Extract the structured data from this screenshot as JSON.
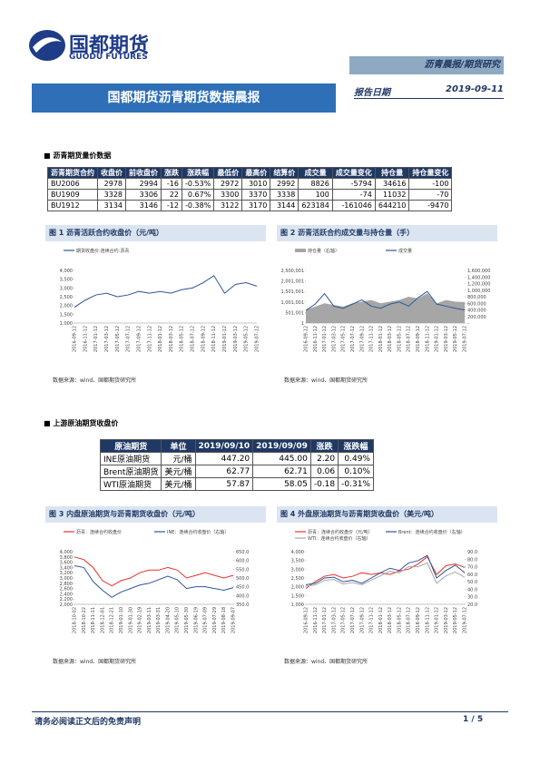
{
  "header": {
    "logo_cn": "国都期货",
    "logo_en": "GUODU FUTURES",
    "tag": "沥青晨报/期货研究",
    "title": "国都期货沥青期货数据晨报",
    "date_label": "报告日期",
    "date": "2019-09-11"
  },
  "section1": "沥青期货量价数据",
  "table1": {
    "headers": [
      "沥青期货合约",
      "收盘价",
      "前收盘价",
      "涨跌",
      "涨跌幅",
      "最低价",
      "最高价",
      "结算价",
      "成交量",
      "成交量变化",
      "持仓量",
      "持仓量变化"
    ],
    "rows": [
      [
        "BU2006",
        "2978",
        "2994",
        "-16",
        "-0.53%",
        "2972",
        "3010",
        "2992",
        "8826",
        "-5794",
        "34616",
        "-100"
      ],
      [
        "BU1909",
        "3328",
        "3306",
        "22",
        "0.67%",
        "3300",
        "3370",
        "3338",
        "100",
        "-74",
        "11032",
        "-70"
      ],
      [
        "BU1912",
        "3134",
        "3146",
        "-12",
        "-0.38%",
        "3122",
        "3170",
        "3144",
        "623184",
        "-161046",
        "644210",
        "-9470"
      ]
    ]
  },
  "section2": "上游原油期货收盘价",
  "table2": {
    "headers": [
      "原油期货",
      "单位",
      "2019/09/10",
      "2019/09/09",
      "涨跌",
      "涨跌幅"
    ],
    "rows": [
      [
        "INE原油期货",
        "元/桶",
        "447.20",
        "445.00",
        "2.20",
        "0.49%"
      ],
      [
        "Brent原油期货",
        "美元/桶",
        "62.77",
        "62.71",
        "0.06",
        "0.10%"
      ],
      [
        "WTI原油期货",
        "美元/桶",
        "57.87",
        "58.05",
        "-0.18",
        "-0.31%"
      ]
    ]
  },
  "chart_data": [
    {
      "type": "line",
      "title": "图 1 沥青活跃合约收盘价（元/吨）",
      "source": "数据来源：wind、国都期货研究所",
      "categories": [
        "2016-09-12",
        "2016-11-12",
        "2017-01-12",
        "2017-03-12",
        "2017-05-12",
        "2017-07-12",
        "2017-09-12",
        "2017-11-12",
        "2018-01-12",
        "2018-03-12",
        "2018-05-12",
        "2018-07-12",
        "2018-09-12",
        "2018-11-12",
        "2019-01-12",
        "2019-03-12",
        "2019-05-12",
        "2019-07-12"
      ],
      "series": [
        {
          "name": "期货收盘价:连续合约:沥青",
          "color": "#2f5597",
          "values": [
            1900,
            2300,
            2600,
            2700,
            2500,
            2600,
            2800,
            2700,
            2800,
            2700,
            2900,
            3000,
            3300,
            3700,
            2700,
            3200,
            3300,
            3100
          ]
        }
      ],
      "ylim": [
        1000,
        4000
      ],
      "yticks": [
        {
          "value": 1000,
          "label": "1,000"
        },
        {
          "value": 1500,
          "label": "1,500"
        },
        {
          "value": 2000,
          "label": "2,000"
        },
        {
          "value": 2500,
          "label": "2,500"
        },
        {
          "value": 3000,
          "label": "3,000"
        },
        {
          "value": 3500,
          "label": "3,500"
        },
        {
          "value": 4000,
          "label": "4,000"
        }
      ]
    },
    {
      "type": "line",
      "title": "图 2 沥青活跃合约成交量与持仓量（手）",
      "source": "数据来源：wind、国都期货研究所",
      "categories": [
        "2016-09-12",
        "2016-11-12",
        "2017-01-12",
        "2017-03-12",
        "2017-05-12",
        "2017-07-12",
        "2017-09-12",
        "2017-11-12",
        "2018-01-12",
        "2018-03-12",
        "2018-05-12",
        "2018-07-12",
        "2018-09-12",
        "2018-11-12",
        "2019-01-12",
        "2019-03-12",
        "2019-05-12",
        "2019-07-12"
      ],
      "series": [
        {
          "name": "持仓量（右轴）",
          "color": "#a6a6a6",
          "kind": "area",
          "axis": "y2",
          "values": [
            400000,
            500000,
            600000,
            550000,
            500000,
            600000,
            650000,
            700000,
            600000,
            650000,
            700000,
            800000,
            750000,
            900000,
            600000,
            700000,
            650000,
            640000
          ]
        },
        {
          "name": "成交量",
          "color": "#2f5597",
          "values": [
            600000,
            900000,
            1400000,
            800000,
            700000,
            900000,
            1100000,
            800000,
            700000,
            900000,
            1000000,
            800000,
            1200000,
            1500000,
            900000,
            800000,
            700000,
            620000
          ]
        }
      ],
      "ylim": [
        1,
        2500001
      ],
      "yticks": [
        {
          "value": 1,
          "label": "1"
        },
        {
          "value": 501001,
          "label": "501,001"
        },
        {
          "value": 1001001,
          "label": "1,001,001"
        },
        {
          "value": 1501001,
          "label": "1,501,001"
        },
        {
          "value": 2001001,
          "label": "2,001,001"
        },
        {
          "value": 2500001,
          "label": "2,500,001"
        }
      ],
      "y2lim": [
        0,
        1600000
      ],
      "y2ticks": [
        {
          "value": 0,
          "label": "-"
        },
        {
          "value": 200000,
          "label": "200,000"
        },
        {
          "value": 400000,
          "label": "400,000"
        },
        {
          "value": 600000,
          "label": "600,000"
        },
        {
          "value": 800000,
          "label": "800,000"
        },
        {
          "value": 1000000,
          "label": "1,000,000"
        },
        {
          "value": 1200000,
          "label": "1,200,000"
        },
        {
          "value": 1400000,
          "label": "1,400,000"
        },
        {
          "value": 1600000,
          "label": "1,600,000"
        }
      ]
    },
    {
      "type": "line",
      "title": "图 3 内盘原油期货与沥青期货收盘价（元/吨）",
      "source": "数据来源：wind、国都期货研究所",
      "categories": [
        "2018-10-02",
        "2018-10-22",
        "2018-11-11",
        "2018-12-01",
        "2018-12-21",
        "2019-01-10",
        "2019-01-30",
        "2019-02-19",
        "2019-03-11",
        "2019-03-31",
        "2019-04-20",
        "2019-05-10",
        "2019-05-30",
        "2019-06-19",
        "2019-07-09",
        "2019-07-29",
        "2019-08-18",
        "2019-09-07"
      ],
      "series": [
        {
          "name": "沥青：连续合约收盘价",
          "color": "#e8312d",
          "values": [
            3800,
            3700,
            3400,
            2900,
            2700,
            2900,
            3000,
            3200,
            3300,
            3300,
            3400,
            3300,
            3000,
            3100,
            3200,
            3100,
            3000,
            3100
          ]
        },
        {
          "name": "INE：连续合约收盘价（右轴）",
          "color": "#2f5597",
          "axis": "y2",
          "values": [
            570,
            560,
            480,
            430,
            390,
            420,
            440,
            460,
            470,
            490,
            510,
            490,
            440,
            450,
            450,
            440,
            430,
            445
          ]
        }
      ],
      "ylim": [
        2000,
        4000
      ],
      "yticks": [
        {
          "value": 2000,
          "label": "2,000"
        },
        {
          "value": 2200,
          "label": "2,200"
        },
        {
          "value": 2400,
          "label": "2,400"
        },
        {
          "value": 2600,
          "label": "2,600"
        },
        {
          "value": 2800,
          "label": "2,800"
        },
        {
          "value": 3000,
          "label": "3,000"
        },
        {
          "value": 3200,
          "label": "3,200"
        },
        {
          "value": 3400,
          "label": "3,400"
        },
        {
          "value": 3600,
          "label": "3,600"
        },
        {
          "value": 3800,
          "label": "3,800"
        },
        {
          "value": 4000,
          "label": "4,000"
        }
      ],
      "y2lim": [
        350,
        650
      ],
      "y2ticks": [
        {
          "value": 350,
          "label": "350.0"
        },
        {
          "value": 400,
          "label": "400.0"
        },
        {
          "value": 450,
          "label": "450.0"
        },
        {
          "value": 500,
          "label": "500.0"
        },
        {
          "value": 550,
          "label": "550.0"
        },
        {
          "value": 600,
          "label": "600.0"
        },
        {
          "value": 650,
          "label": "650.0"
        }
      ]
    },
    {
      "type": "line",
      "title": "图 4 外盘原油期货与沥青期货收盘价（美元/吨）",
      "source": "数据来源：wind、国都期货研究所",
      "categories": [
        "2016-09-12",
        "2016-11-12",
        "2017-01-12",
        "2017-03-12",
        "2017-05-12",
        "2017-07-12",
        "2017-09-12",
        "2017-11-12",
        "2018-01-12",
        "2018-03-12",
        "2018-05-12",
        "2018-07-12",
        "2018-09-12",
        "2018-11-12",
        "2019-01-12",
        "2019-03-12",
        "2019-05-12",
        "2019-07-12"
      ],
      "series": [
        {
          "name": "沥青：连续合约收盘价（元/吨）",
          "color": "#e8312d",
          "values": [
            1900,
            2300,
            2600,
            2700,
            2500,
            2600,
            2800,
            2700,
            2800,
            2700,
            2900,
            3000,
            3300,
            3700,
            2700,
            3200,
            3300,
            3100
          ]
        },
        {
          "name": "Brent：连续合约收盘价（右轴）",
          "color": "#2f5597",
          "axis": "y2",
          "values": [
            46,
            48,
            55,
            56,
            50,
            52,
            48,
            55,
            62,
            68,
            65,
            75,
            78,
            85,
            55,
            65,
            72,
            62
          ]
        },
        {
          "name": "WTI：连续合约收盘价（右轴）",
          "color": "#a6a6a6",
          "axis": "y2",
          "values": [
            44,
            46,
            52,
            53,
            47,
            49,
            46,
            52,
            58,
            64,
            62,
            70,
            70,
            75,
            48,
            58,
            63,
            56
          ]
        }
      ],
      "ylim": [
        1000,
        4000
      ],
      "yticks": [
        {
          "value": 1000,
          "label": "1,000"
        },
        {
          "value": 1500,
          "label": "1,500"
        },
        {
          "value": 2000,
          "label": "2,000"
        },
        {
          "value": 2500,
          "label": "2,500"
        },
        {
          "value": 3000,
          "label": "3,000"
        },
        {
          "value": 3500,
          "label": "3,500"
        },
        {
          "value": 4000,
          "label": "4,000"
        }
      ],
      "y2lim": [
        20,
        90
      ],
      "y2ticks": [
        {
          "value": 20,
          "label": "20.0"
        },
        {
          "value": 30,
          "label": "30.0"
        },
        {
          "value": 40,
          "label": "40.0"
        },
        {
          "value": 50,
          "label": "50.0"
        },
        {
          "value": 60,
          "label": "60.0"
        },
        {
          "value": 70,
          "label": "70.0"
        },
        {
          "value": 80,
          "label": "80.0"
        },
        {
          "value": 90,
          "label": "90.0"
        }
      ]
    }
  ],
  "footer": {
    "disclaimer": "请务必阅读正文后的免责声明",
    "page": "1 / 5"
  }
}
